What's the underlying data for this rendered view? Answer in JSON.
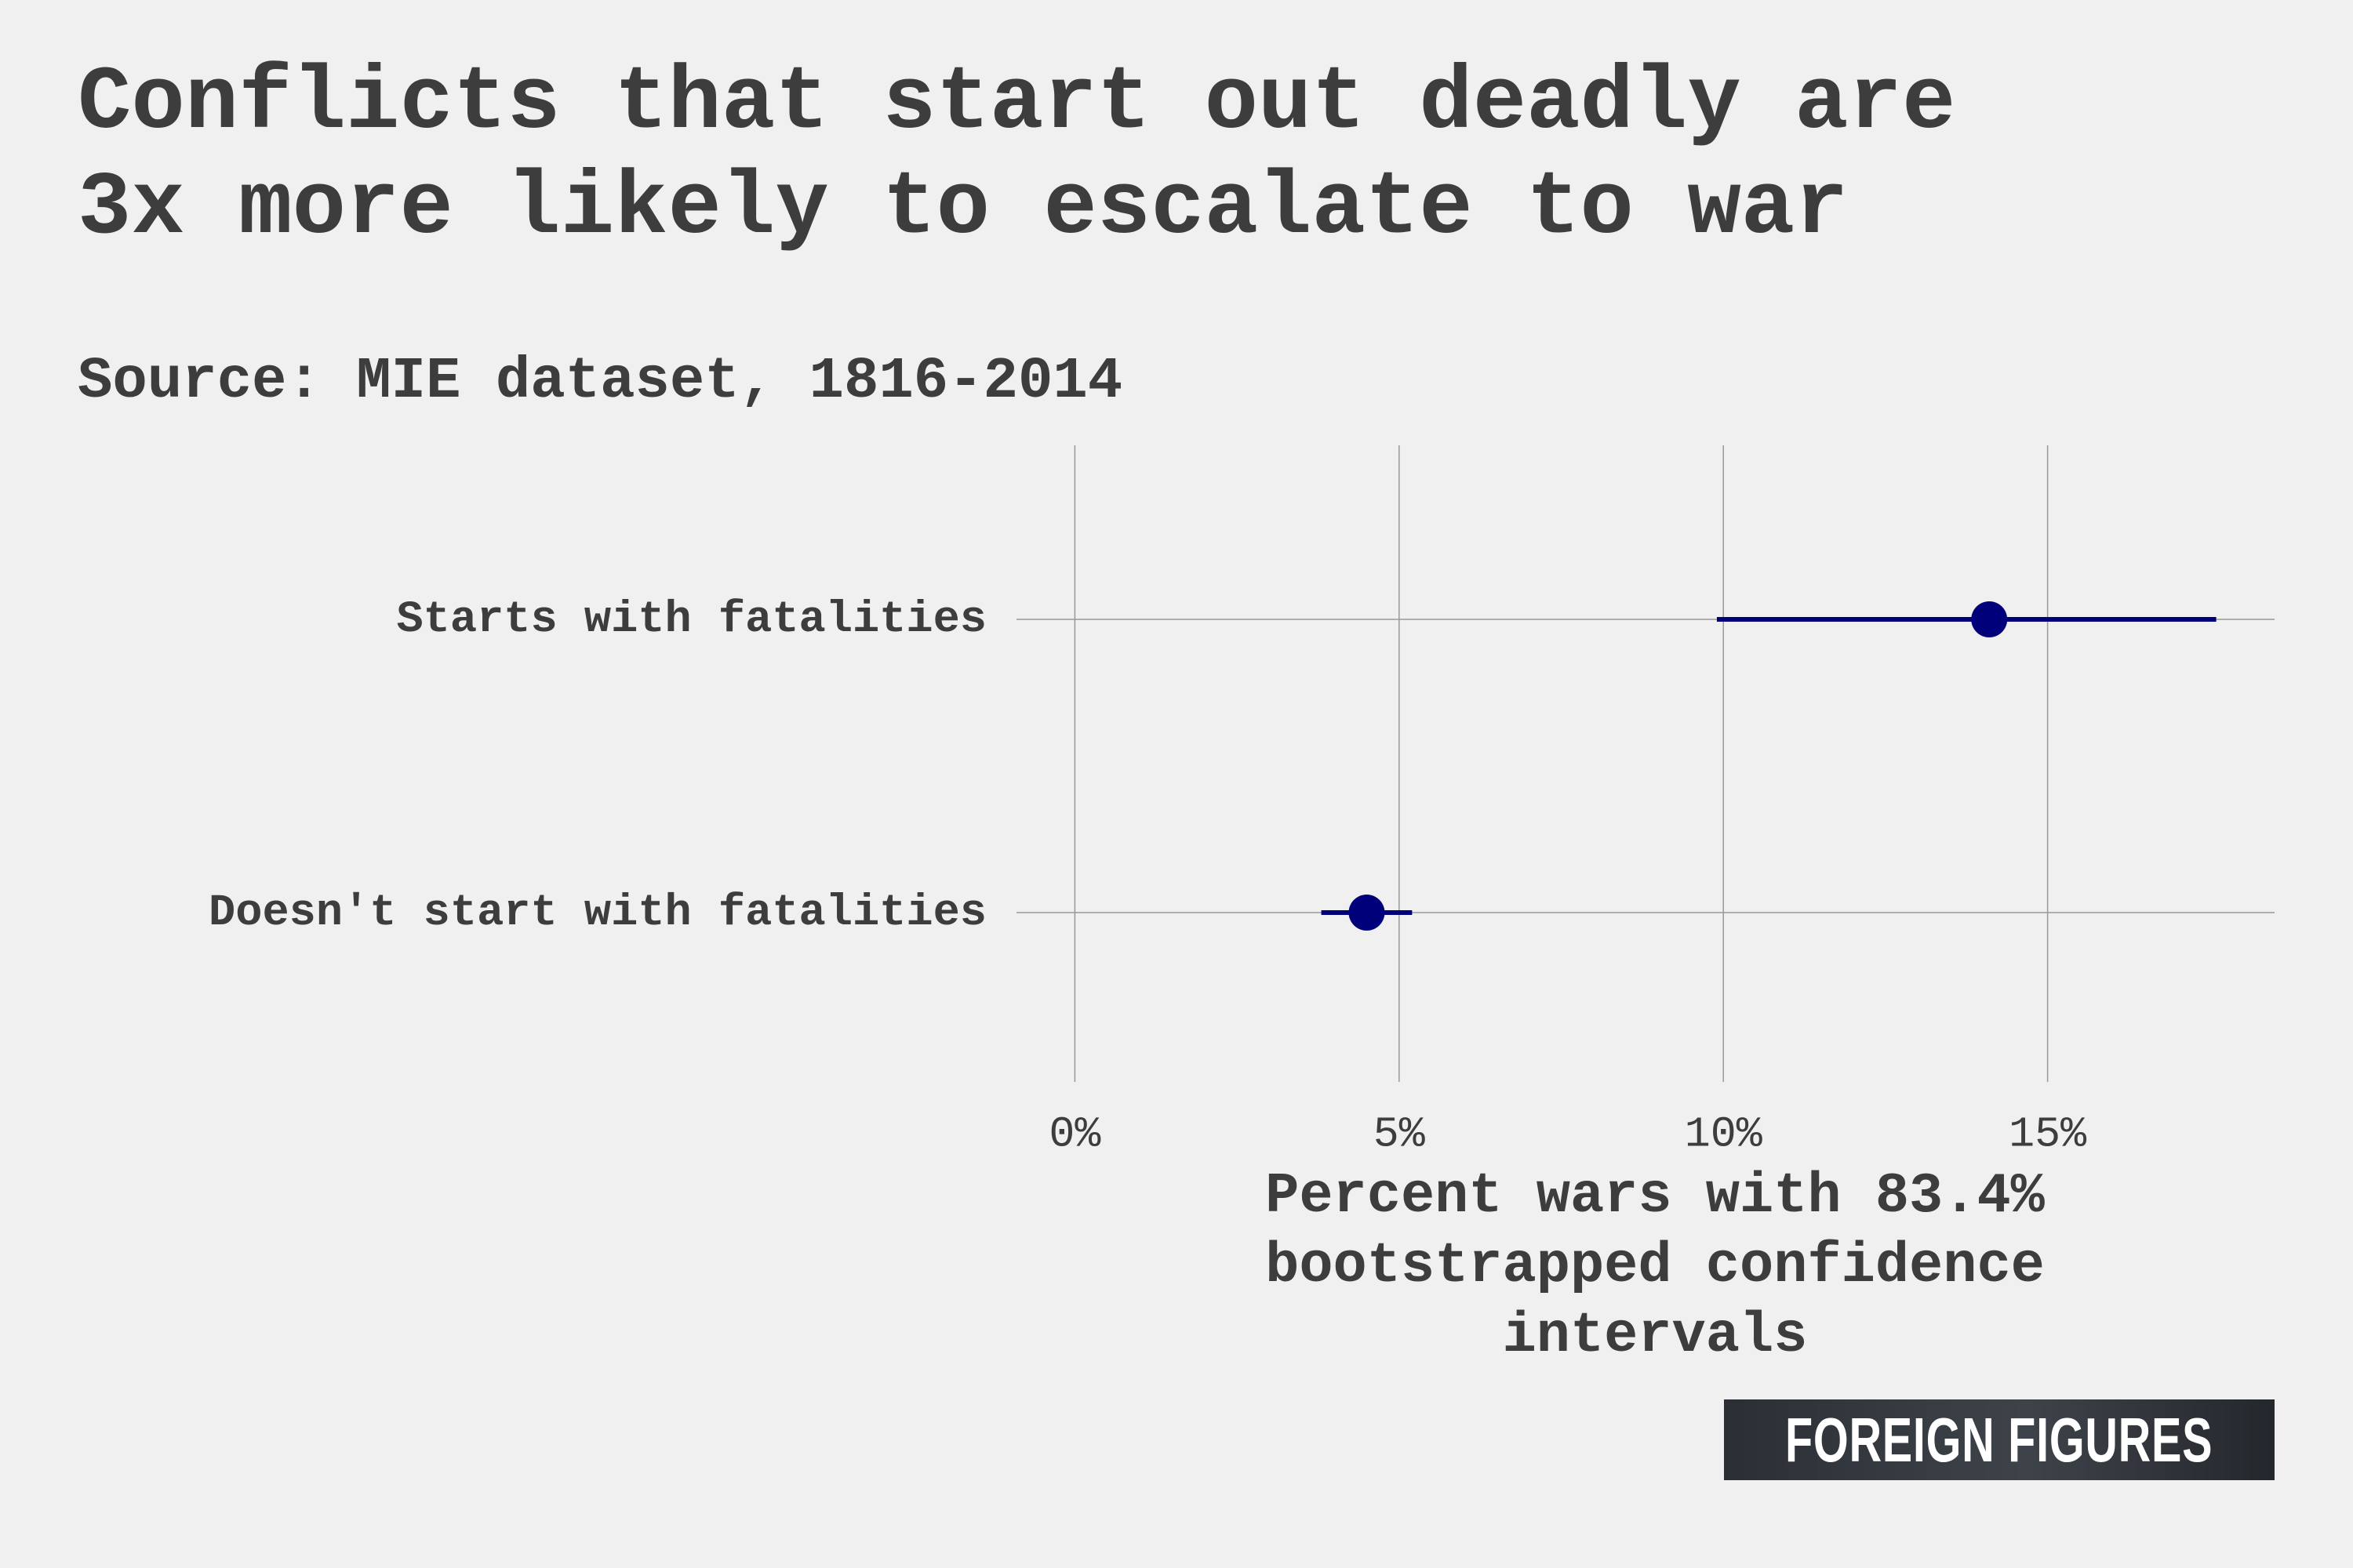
{
  "title_lines": [
    "Conflicts that start out deadly are",
    "3x more likely to escalate to war"
  ],
  "subtitle": "Source: MIE dataset, 1816-2014",
  "logo_text": "FOREIGN FIGURES",
  "chart_data": {
    "type": "dot-errorbar",
    "title": "Conflicts that start out deadly are 3x more likely to escalate to war",
    "categories": [
      "Starts with fatalities",
      "Doesn't start with fatalities"
    ],
    "values": [
      14.1,
      4.5
    ],
    "ci_low": [
      9.9,
      3.8
    ],
    "ci_high": [
      17.6,
      5.2
    ],
    "xlabel_lines": [
      "Percent wars with 83.4%",
      "bootstrapped confidence",
      "intervals"
    ],
    "xticks": [
      0,
      5,
      10,
      15
    ],
    "xtick_labels": [
      "0%",
      "5%",
      "10%",
      "15%"
    ],
    "xlim": [
      -0.9,
      18.5
    ],
    "grid": true,
    "colors": {
      "point": "#00007a",
      "grid": "#999999",
      "text": "#3d3d3d",
      "background": "#f0f0f0"
    }
  }
}
